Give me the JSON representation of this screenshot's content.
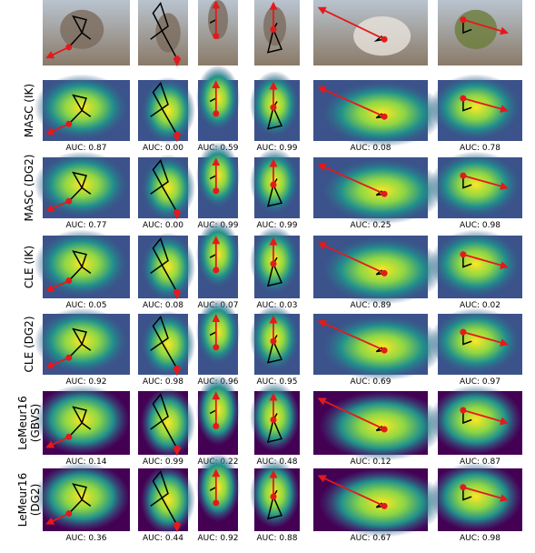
{
  "rows": [
    {
      "label": [
        "MASC (IK)"
      ],
      "auc": [
        "AUC: 0.87",
        "AUC: 0.00",
        "AUC: 0.59",
        "AUC: 0.99",
        "AUC: 0.08",
        "AUC: 0.78"
      ]
    },
    {
      "label": [
        "MASC (DG2)"
      ],
      "auc": [
        "AUC: 0.77",
        "AUC: 0.00",
        "AUC: 0.99",
        "AUC: 0.99",
        "AUC: 0.25",
        "AUC: 0.98"
      ]
    },
    {
      "label": [
        "CLE (IK)"
      ],
      "auc": [
        "AUC: 0.05",
        "AUC: 0.08",
        "AUC: 0.07",
        "AUC: 0.03",
        "AUC: 0.89",
        "AUC: 0.02"
      ]
    },
    {
      "label": [
        "CLE (DG2)"
      ],
      "auc": [
        "AUC: 0.92",
        "AUC: 0.98",
        "AUC: 0.96",
        "AUC: 0.95",
        "AUC: 0.69",
        "AUC: 0.97"
      ]
    },
    {
      "label": [
        "LeMeur16",
        "(GBVS)"
      ],
      "auc": [
        "AUC: 0.14",
        "AUC: 0.99",
        "AUC: 0.22",
        "AUC: 0.48",
        "AUC: 0.12",
        "AUC: 0.87"
      ]
    },
    {
      "label": [
        "LeMeur16",
        "(DG2)"
      ],
      "auc": [
        "AUC: 0.36",
        "AUC: 0.44",
        "AUC: 0.92",
        "AUC: 0.88",
        "AUC: 0.67",
        "AUC: 0.98"
      ]
    }
  ]
}
